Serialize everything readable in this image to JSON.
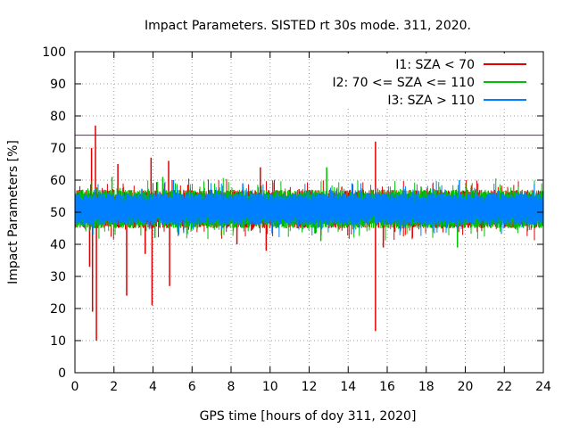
{
  "chart_data": {
    "type": "line",
    "title": "Impact Parameters. SISTED rt 30s mode. 311, 2020.",
    "xlabel": "GPS time [hours of doy 311, 2020]",
    "ylabel": "Impact Parameters [%]",
    "xlim": [
      0,
      24
    ],
    "ylim": [
      0,
      100
    ],
    "xticks": [
      "0",
      "2",
      "4",
      "6",
      "8",
      "10",
      "12",
      "14",
      "16",
      "18",
      "20",
      "22",
      "24"
    ],
    "yticks": [
      "0",
      "10",
      "20",
      "30",
      "40",
      "50",
      "60",
      "70",
      "80",
      "90",
      "100"
    ],
    "grid": true,
    "legend_position": "top-right",
    "threshold": {
      "value": 74,
      "color": "#a000a0"
    },
    "series": [
      {
        "name": "I1: SZA < 70",
        "color": "#e00000",
        "band": {
          "center": 51,
          "low": 45,
          "high": 57
        },
        "spikes": [
          {
            "x": 0.85,
            "y": 70
          },
          {
            "x": 0.9,
            "y": 19
          },
          {
            "x": 1.05,
            "y": 77
          },
          {
            "x": 1.1,
            "y": 10
          },
          {
            "x": 0.75,
            "y": 33
          },
          {
            "x": 2.65,
            "y": 24
          },
          {
            "x": 3.6,
            "y": 37
          },
          {
            "x": 3.95,
            "y": 21
          },
          {
            "x": 3.9,
            "y": 67
          },
          {
            "x": 4.85,
            "y": 27
          },
          {
            "x": 4.8,
            "y": 66
          },
          {
            "x": 2.2,
            "y": 65
          },
          {
            "x": 15.4,
            "y": 13
          },
          {
            "x": 15.4,
            "y": 72
          },
          {
            "x": 15.8,
            "y": 39
          },
          {
            "x": 9.5,
            "y": 64
          },
          {
            "x": 9.8,
            "y": 38
          },
          {
            "x": 8.3,
            "y": 40
          }
        ]
      },
      {
        "name": "I2: 70 <= SZA <= 110",
        "color": "#00c000",
        "band": {
          "center": 51,
          "low": 45,
          "high": 57
        },
        "spikes": [
          {
            "x": 1.9,
            "y": 61
          },
          {
            "x": 4.1,
            "y": 42
          },
          {
            "x": 12.9,
            "y": 64
          },
          {
            "x": 19.6,
            "y": 39
          },
          {
            "x": 12.6,
            "y": 41
          },
          {
            "x": 4.5,
            "y": 61
          }
        ]
      },
      {
        "name": "I3: SZA > 110",
        "color": "#0080ff",
        "band": {
          "center": 51,
          "low": 46,
          "high": 56
        },
        "spikes": [
          {
            "x": 5.05,
            "y": 60
          },
          {
            "x": 14.2,
            "y": 59
          },
          {
            "x": 19.7,
            "y": 60
          },
          {
            "x": 8.6,
            "y": 59
          }
        ]
      }
    ]
  }
}
